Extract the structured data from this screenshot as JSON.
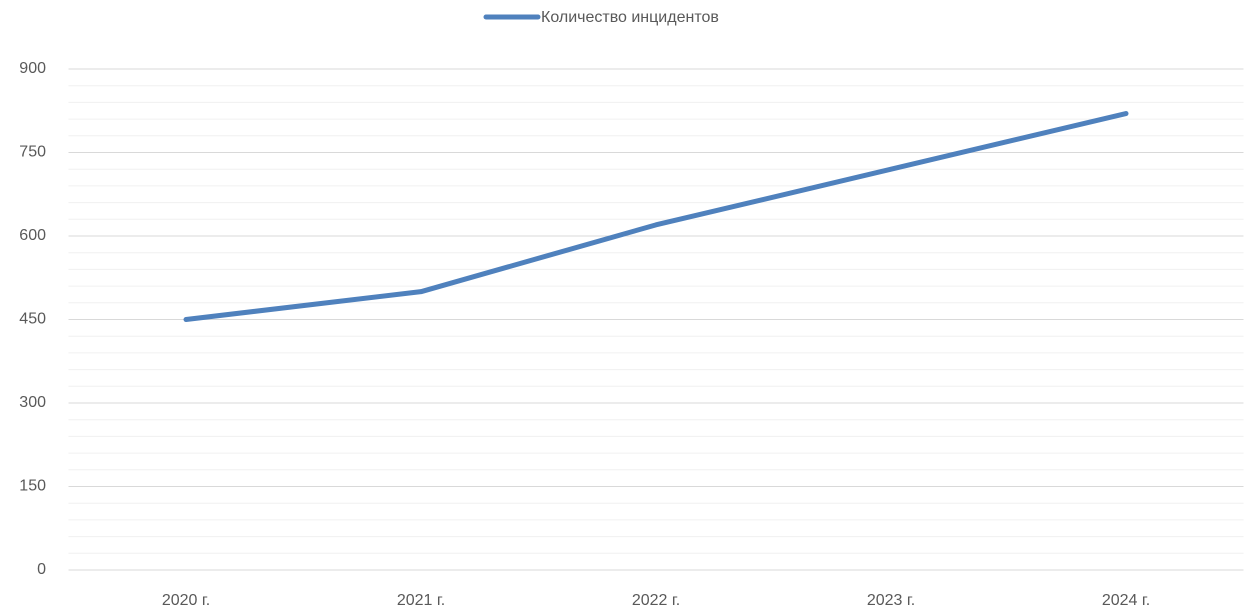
{
  "chart_data": {
    "type": "line",
    "categories": [
      "2020 г.",
      "2021 г.",
      "2022 г.",
      "2023 г.",
      "2024 г."
    ],
    "series": [
      {
        "name": "Количество инцидентов",
        "color": "#4f81bd",
        "values": [
          450,
          500,
          620,
          720,
          820
        ]
      }
    ],
    "ylim": [
      0,
      900
    ],
    "yticks": [
      0,
      150,
      300,
      450,
      600,
      750,
      900
    ],
    "grid": true,
    "minor_grid": true,
    "legend": "top"
  }
}
